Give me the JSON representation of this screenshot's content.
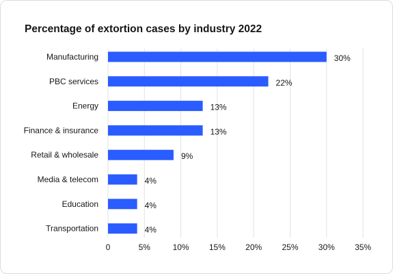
{
  "chart_data": {
    "type": "bar",
    "orientation": "horizontal",
    "title": "Percentage of extortion cases by industry 2022",
    "categories": [
      "Manufacturing",
      "PBC services",
      "Energy",
      "Finance & insurance",
      "Retail & wholesale",
      "Media & telecom",
      "Education",
      "Transportation"
    ],
    "values": [
      30,
      22,
      13,
      13,
      9,
      4,
      4,
      4
    ],
    "value_labels": [
      "30%",
      "22%",
      "13%",
      "13%",
      "9%",
      "4%",
      "4%",
      "4%"
    ],
    "xlim": [
      0,
      35
    ],
    "xticks": [
      0,
      5,
      10,
      15,
      20,
      25,
      30,
      35
    ],
    "xtick_labels": [
      "0",
      "5%",
      "10%",
      "15%",
      "20%",
      "25%",
      "30%",
      "35%"
    ],
    "xlabel": "",
    "ylabel": "",
    "grid": "vertical",
    "bar_color": "#2a5cff",
    "grid_color": "#e2e2e2"
  }
}
